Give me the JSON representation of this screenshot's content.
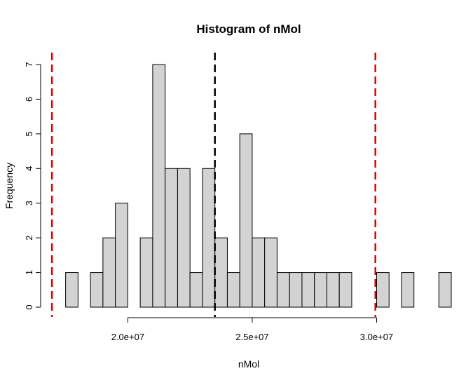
{
  "chart_data": {
    "type": "bar",
    "title": "Histogram of nMol",
    "xlabel": "nMol",
    "ylabel": "Frequency",
    "bin_width": 500000,
    "x_start": 17500000,
    "counts": [
      1,
      0,
      1,
      2,
      3,
      0,
      2,
      7,
      4,
      4,
      1,
      4,
      2,
      1,
      5,
      2,
      2,
      1,
      1,
      1,
      1,
      1,
      1,
      0,
      0,
      1,
      0,
      1,
      0,
      0,
      1
    ],
    "xlim": [
      16750000,
      33000000
    ],
    "ylim": [
      0,
      7
    ],
    "xticks": [
      20000000,
      25000000,
      30000000
    ],
    "xtick_labels": [
      "2.0e+07",
      "2.5e+07",
      "3.0e+07"
    ],
    "yticks": [
      0,
      1,
      2,
      3,
      4,
      5,
      6,
      7
    ],
    "ytick_labels": [
      "0",
      "1",
      "2",
      "3",
      "4",
      "5",
      "6",
      "7"
    ],
    "vlines": [
      {
        "x": 23500000,
        "color": "#000000",
        "style": "dashed"
      },
      {
        "x": 16950000,
        "color": "#e00000",
        "style": "dashed"
      },
      {
        "x": 29950000,
        "color": "#e00000",
        "style": "dashed"
      }
    ],
    "bar_fill": "#d3d3d3",
    "bar_stroke": "#000000",
    "grid": false,
    "legend": "none"
  }
}
